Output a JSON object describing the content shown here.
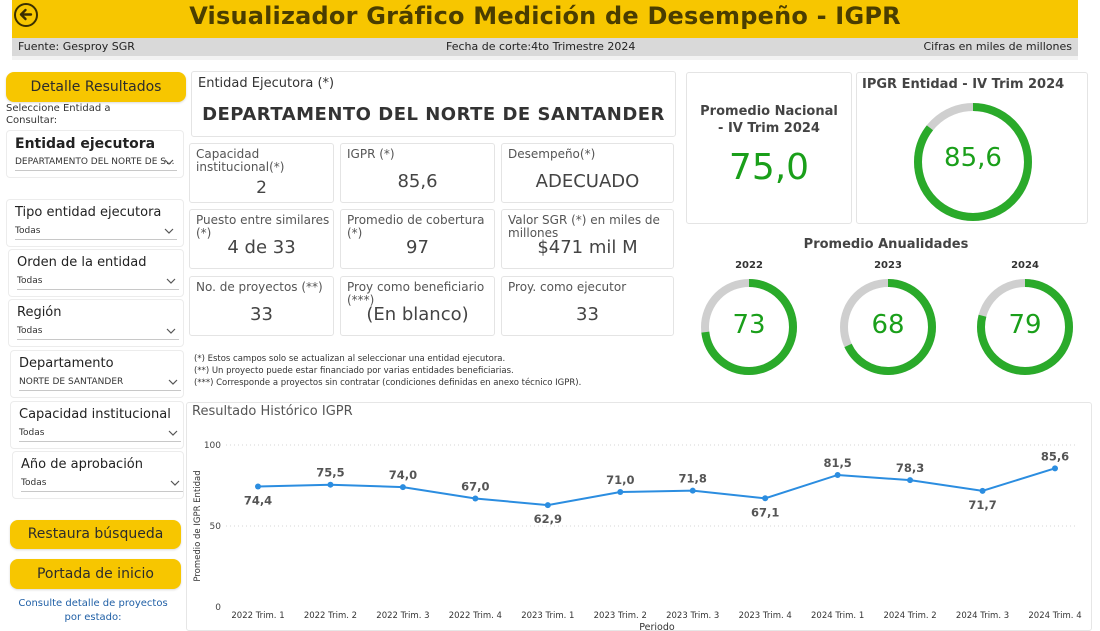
{
  "header": {
    "title": "Visualizador Gráfico Medición de Desempeño - IGPR",
    "fuente": "Fuente: Gesproy SGR",
    "fecha": "Fecha de corte:4to Trimestre 2024",
    "cifras": "Cifras en miles de millones"
  },
  "sidebar": {
    "detalle_button": "Detalle Resultados",
    "select_prompt": "Seleccione Entidad a Consultar:",
    "filters": [
      {
        "label": "Entidad ejecutora",
        "value": "DEPARTAMENTO DEL NORTE DE S..."
      },
      {
        "label": "Tipo entidad ejecutora",
        "value": "Todas"
      },
      {
        "label": "Orden de la entidad",
        "value": "Todas"
      },
      {
        "label": "Región",
        "value": "Todas"
      },
      {
        "label": "Departamento",
        "value": "NORTE DE SANTANDER"
      },
      {
        "label": "Capacidad institucional",
        "value": "Todas"
      },
      {
        "label": "Año de aprobación",
        "value": "Todas"
      }
    ],
    "restaura_button": "Restaura búsqueda",
    "portada_button": "Portada de inicio",
    "consulte_link": "Consulte detalle de proyectos por estado:"
  },
  "entity": {
    "label": "Entidad Ejecutora (*)",
    "name": "DEPARTAMENTO DEL NORTE DE SANTANDER"
  },
  "cards": [
    {
      "label": "Capacidad institucional(*)",
      "value": "2"
    },
    {
      "label": "IGPR (*)",
      "value": "85,6"
    },
    {
      "label": "Desempeño(*)",
      "value": "ADECUADO"
    },
    {
      "label": "Puesto entre similares (*)",
      "value": "4 de 33"
    },
    {
      "label": "Promedio de cobertura (*)",
      "value": "97"
    },
    {
      "label": "Valor SGR (*) en miles de millones",
      "value": "$471 mil M"
    },
    {
      "label": "No. de proyectos (**)",
      "value": "33"
    },
    {
      "label": "Proy como beneficiario (***)",
      "value": "(En blanco)"
    },
    {
      "label": "Proy. como ejecutor",
      "value": "33"
    }
  ],
  "footnotes": [
    "(*) Estos campos solo se actualizan al seleccionar una entidad ejecutora.",
    "(**) Un proyecto puede estar financiado por varias entidades beneficiarias.",
    "(***) Corresponde a proyectos sin contratar (condiciones definidas en anexo técnico IGPR)."
  ],
  "kpis": {
    "promedio_nacional_title": "Promedio Nacional - IV Trim 2024",
    "promedio_nacional_value": "75,0",
    "igpr_entidad_title": "IPGR Entidad - IV Trim 2024",
    "igpr_entidad_value": "85,6",
    "igpr_entidad_fraction": 0.856,
    "anualidades_title": "Promedio Anualidades",
    "anualidades": [
      {
        "year": "2022",
        "value": "73",
        "fraction": 0.73
      },
      {
        "year": "2023",
        "value": "68",
        "fraction": 0.68
      },
      {
        "year": "2024",
        "value": "79",
        "fraction": 0.79
      }
    ]
  },
  "colors": {
    "brand_yellow": "#f7c600",
    "gauge_green": "#2aaa2a",
    "gauge_track": "#cfcfcf",
    "line_blue": "#2b8de0"
  },
  "chart_data": {
    "type": "line",
    "title": "Resultado Histórico IGPR",
    "xlabel": "Periodo",
    "ylabel": "Promedio de IGPR Entidad",
    "ylim": [
      0,
      100
    ],
    "yticks": [
      0,
      50,
      100
    ],
    "categories": [
      "2022 Trim. 1",
      "2022 Trim. 2",
      "2022 Trim. 3",
      "2022 Trim. 4",
      "2023 Trim. 1",
      "2023 Trim. 2",
      "2023 Trim. 3",
      "2023 Trim. 4",
      "2024 Trim. 1",
      "2024 Trim. 2",
      "2024 Trim. 3",
      "2024 Trim. 4"
    ],
    "values": [
      74.4,
      75.5,
      74.0,
      67.0,
      62.9,
      71.0,
      71.8,
      67.1,
      81.5,
      78.3,
      71.7,
      85.6
    ],
    "labels": [
      "74,4",
      "75,5",
      "74,0",
      "67,0",
      "62,9",
      "71,0",
      "71,8",
      "67,1",
      "81,5",
      "78,3",
      "71,7",
      "85,6"
    ],
    "label_position": [
      "below",
      "above",
      "above",
      "above",
      "below",
      "above",
      "above",
      "below",
      "above",
      "above",
      "below",
      "above"
    ]
  }
}
